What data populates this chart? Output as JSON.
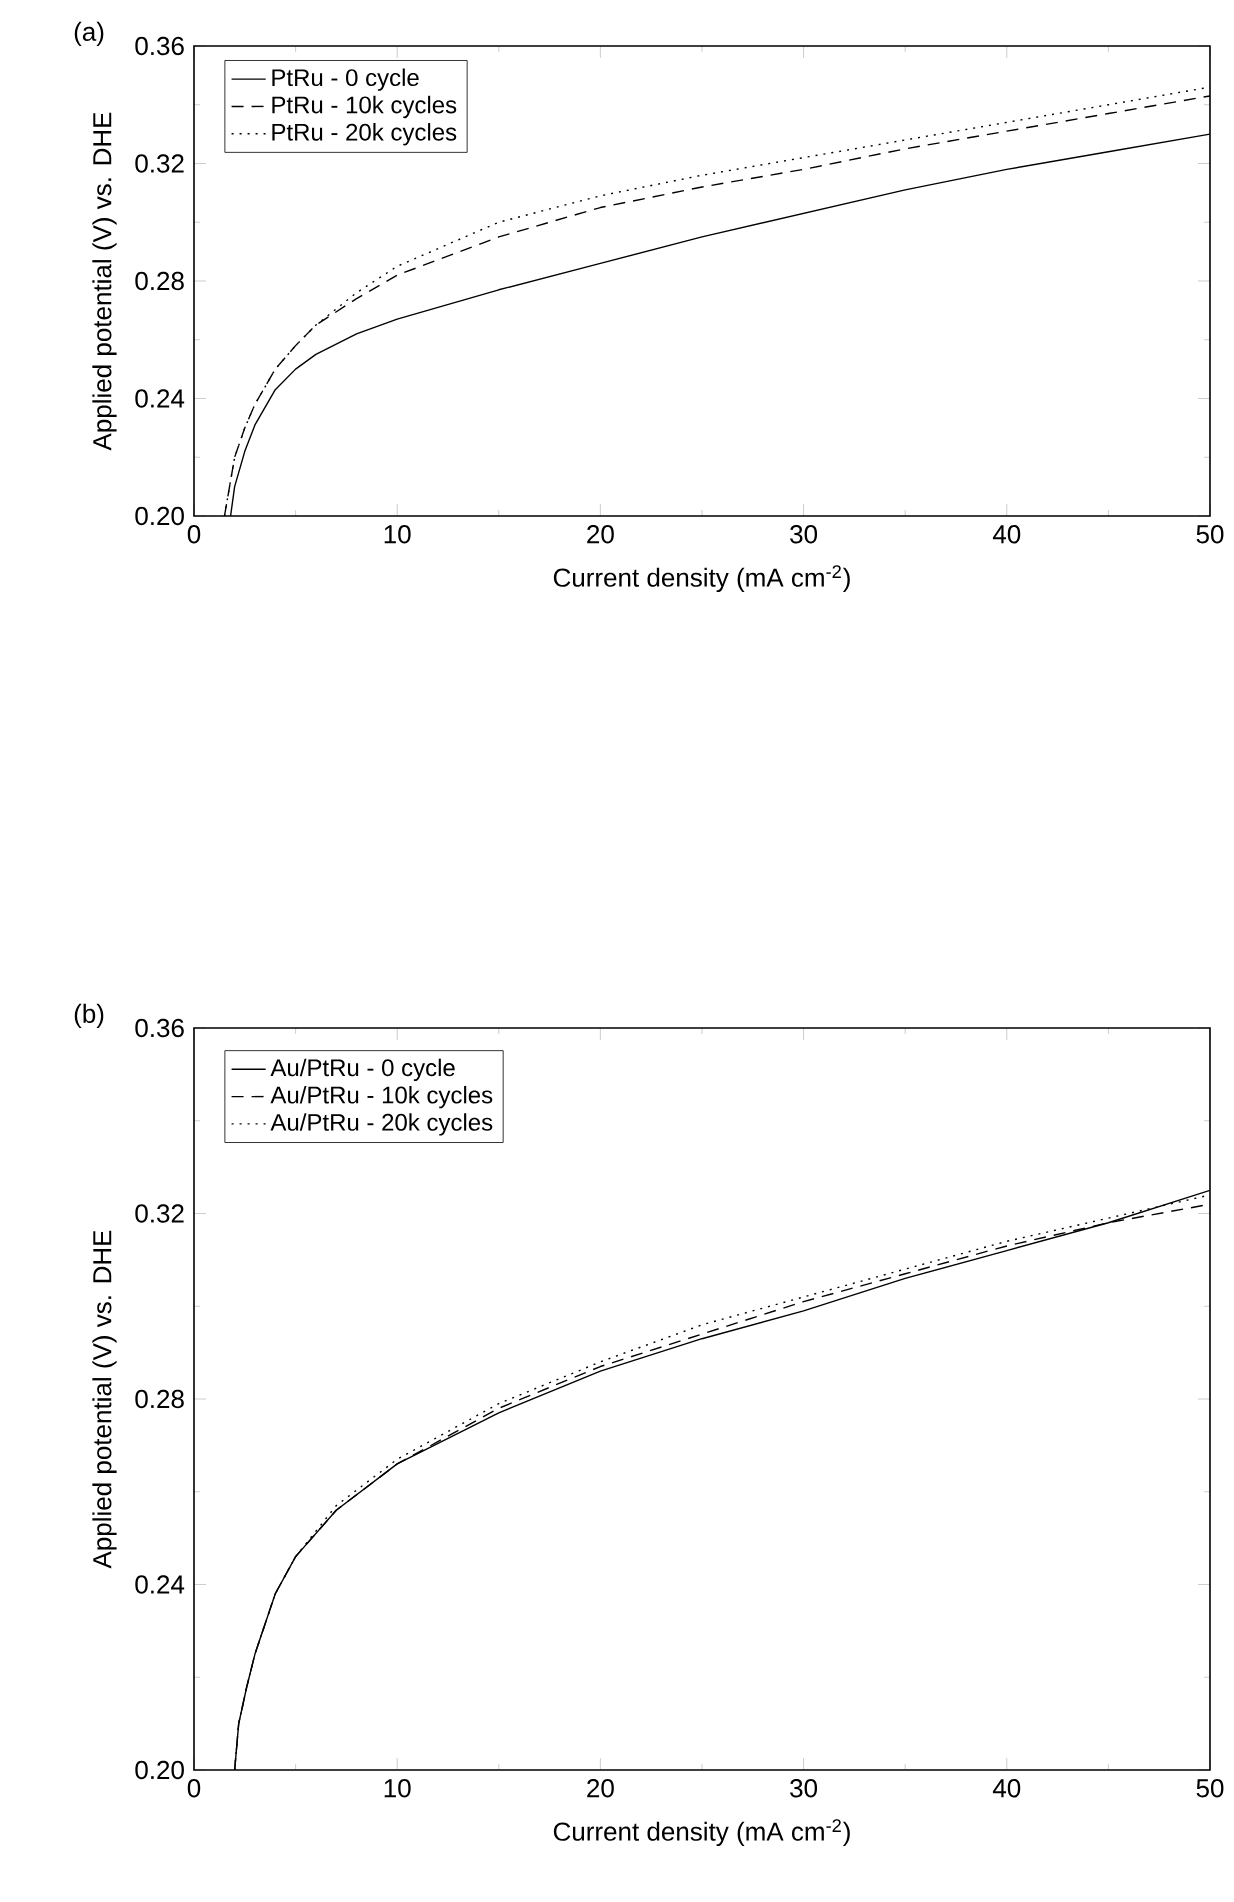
{
  "chart_data": [
    {
      "type": "line",
      "title": "(a)",
      "xlabel": "Current density (mA cm$^{-2}$)",
      "ylabel": "Applied potential (V) vs. DHE",
      "xlim": [
        0,
        50
      ],
      "ylim": [
        0.2,
        0.36
      ],
      "xticks": [
        0,
        10,
        20,
        30,
        40,
        50
      ],
      "yticks": [
        {
          "value": 0.2,
          "label": "0.20"
        },
        0.24,
        0.28,
        0.32,
        0.36
      ],
      "legend": "top left",
      "grid": false,
      "series": [
        {
          "name": "PtRu - 0 cycle",
          "color": "#000000",
          "line_style": "solid",
          "x": [
            1.8,
            2,
            2.5,
            3,
            4,
            5,
            6,
            8,
            10,
            15,
            20,
            25,
            30,
            35,
            40,
            45,
            50
          ],
          "values": [
            0.2,
            0.21,
            0.222,
            0.231,
            0.243,
            0.25,
            0.255,
            0.262,
            0.267,
            0.277,
            0.286,
            0.295,
            0.303,
            0.311,
            0.318,
            0.324,
            0.33
          ]
        },
        {
          "name": "PtRu - 10k cycles",
          "color": "#000000",
          "line_style": "dashed",
          "x": [
            1.5,
            2,
            2.5,
            3,
            4,
            5,
            6,
            8,
            10,
            15,
            20,
            25,
            30,
            35,
            40,
            45,
            50
          ],
          "values": [
            0.2,
            0.22,
            0.23,
            0.238,
            0.25,
            0.258,
            0.265,
            0.274,
            0.282,
            0.295,
            0.305,
            0.312,
            0.318,
            0.325,
            0.331,
            0.337,
            0.343
          ]
        },
        {
          "name": "PtRu - 20k cycles",
          "color": "#000000",
          "line_style": "dotted",
          "x": [
            1.5,
            2,
            2.5,
            3,
            4,
            5,
            6,
            8,
            10,
            15,
            20,
            25,
            30,
            35,
            40,
            45,
            50
          ],
          "values": [
            0.2,
            0.22,
            0.23,
            0.238,
            0.25,
            0.258,
            0.265,
            0.276,
            0.285,
            0.3,
            0.309,
            0.316,
            0.322,
            0.328,
            0.334,
            0.34,
            0.346
          ]
        }
      ]
    },
    {
      "type": "line",
      "title": "(b)",
      "xlabel": "Current density (mA cm$^{-2}$)",
      "ylabel": "Applied potential (V) vs. DHE",
      "xlim": [
        0,
        50
      ],
      "ylim": [
        0.2,
        0.36
      ],
      "xticks": [
        0,
        10,
        20,
        30,
        40,
        50
      ],
      "yticks": [
        {
          "value": 0.2,
          "label": "0.20"
        },
        0.24,
        0.28,
        0.32,
        0.36
      ],
      "legend": "top left",
      "grid": false,
      "series": [
        {
          "name": "Au/PtRu - 0 cycle",
          "color": "#000000",
          "line_style": "solid",
          "x": [
            2,
            2.2,
            2.6,
            3,
            4,
            5,
            7,
            10,
            15,
            20,
            25,
            30,
            35,
            40,
            45,
            50
          ],
          "values": [
            0.2,
            0.21,
            0.218,
            0.225,
            0.238,
            0.246,
            0.256,
            0.266,
            0.277,
            0.286,
            0.293,
            0.299,
            0.306,
            0.312,
            0.318,
            0.325
          ]
        },
        {
          "name": "Au/PtRu - 10k cycles",
          "color": "#000000",
          "line_style": "dashed",
          "x": [
            2,
            2.2,
            2.6,
            3,
            4,
            5,
            7,
            10,
            15,
            20,
            25,
            30,
            35,
            40,
            45,
            50
          ],
          "values": [
            0.2,
            0.21,
            0.218,
            0.225,
            0.238,
            0.246,
            0.256,
            0.266,
            0.278,
            0.287,
            0.294,
            0.301,
            0.307,
            0.313,
            0.318,
            0.322
          ]
        },
        {
          "name": "Au/PtRu - 20k cycles",
          "color": "#000000",
          "line_style": "dotted",
          "x": [
            2,
            2.2,
            2.6,
            3,
            4,
            5,
            7,
            10,
            15,
            20,
            25,
            30,
            35,
            40,
            45,
            50
          ],
          "values": [
            0.2,
            0.21,
            0.218,
            0.225,
            0.238,
            0.246,
            0.257,
            0.267,
            0.279,
            0.288,
            0.296,
            0.302,
            0.308,
            0.314,
            0.319,
            0.324
          ]
        }
      ]
    }
  ]
}
